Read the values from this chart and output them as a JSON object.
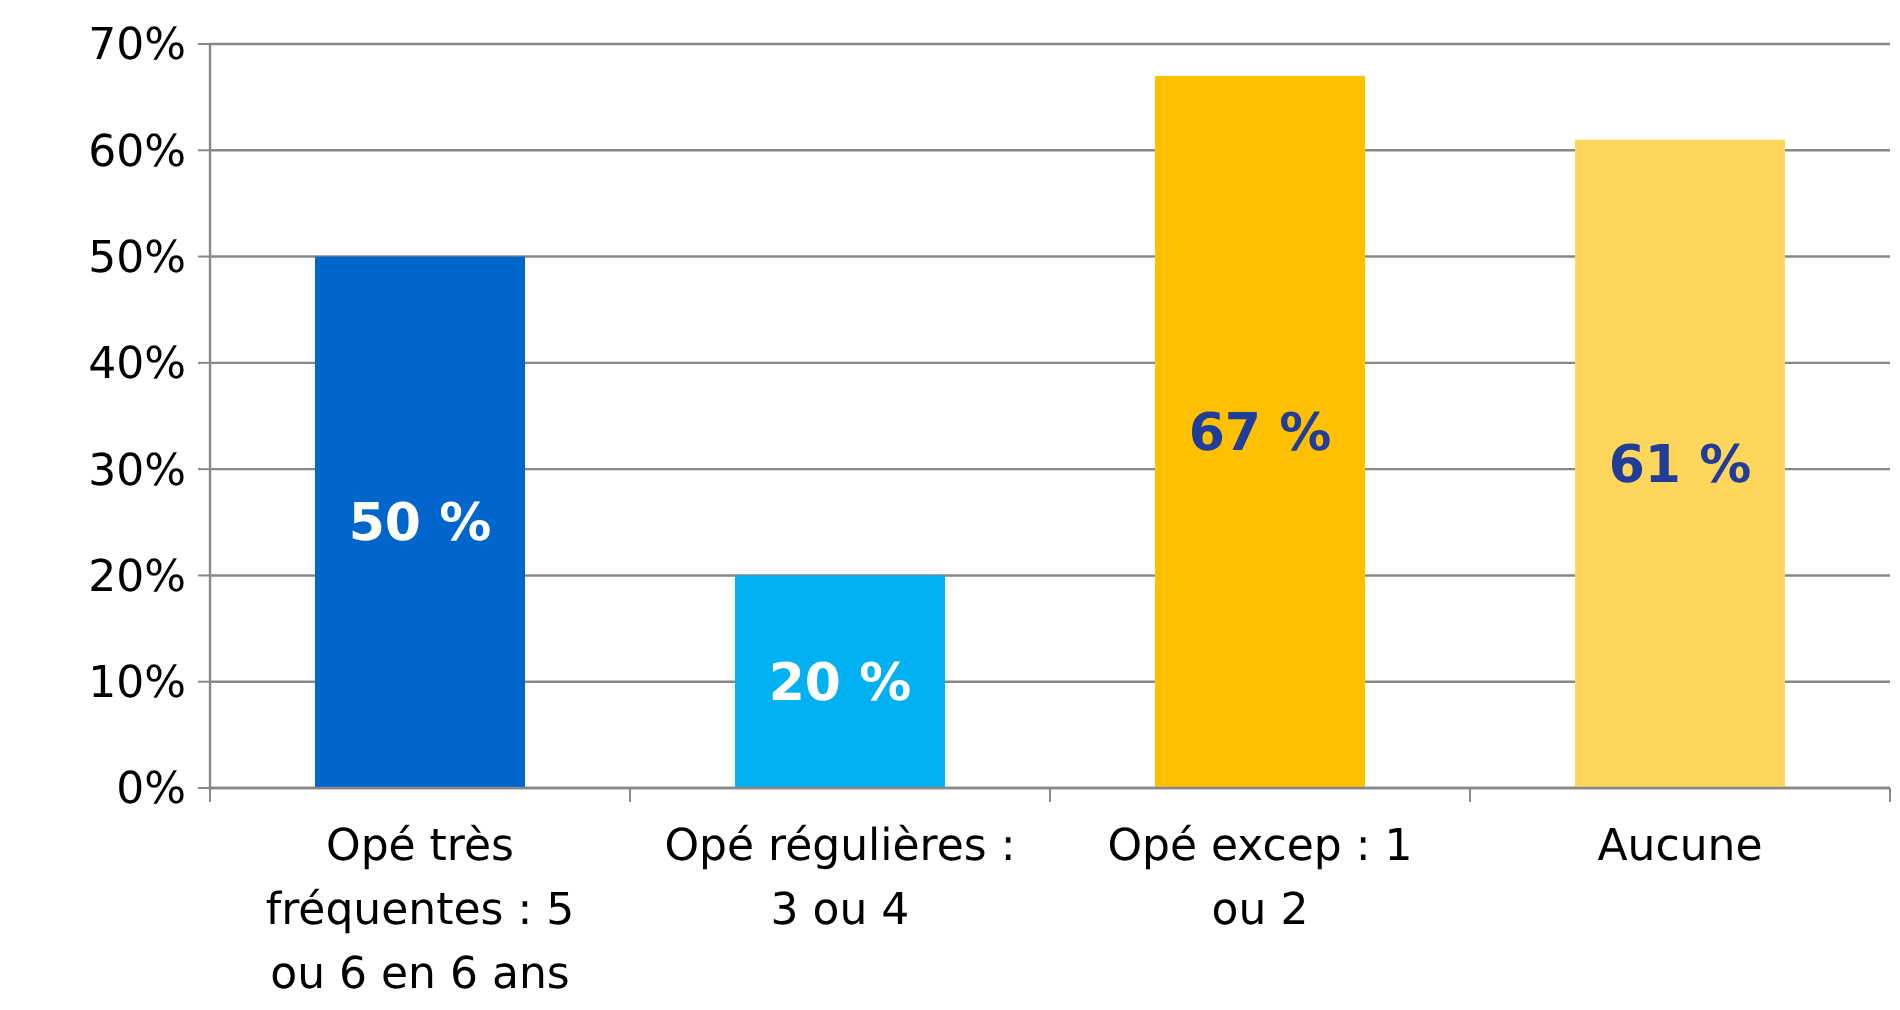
{
  "chart_data": {
    "type": "bar",
    "categories": [
      "Opé très fréquentes : 5 ou 6 en 6 ans",
      "Opé régulières : 3 ou 4",
      "Opé excep : 1 ou 2",
      "Aucune"
    ],
    "values": [
      50,
      20,
      67,
      61
    ],
    "colors": [
      "#0066cc",
      "#00b0f0",
      "#ffc000",
      "#ffd65c"
    ],
    "value_labels": [
      "50 %",
      "20 %",
      "67 %",
      "61 %"
    ],
    "ylim": [
      0,
      70
    ],
    "yticks": [
      {
        "value": 0,
        "label": "0%"
      },
      {
        "value": 10,
        "label": "10%"
      },
      {
        "value": 20,
        "label": "20%"
      },
      {
        "value": 30,
        "label": "30%"
      },
      {
        "value": 40,
        "label": "40%"
      },
      {
        "value": 50,
        "label": "50%"
      },
      {
        "value": 60,
        "label": "60%"
      },
      {
        "value": 70,
        "label": "70%"
      }
    ],
    "grid": "y"
  }
}
